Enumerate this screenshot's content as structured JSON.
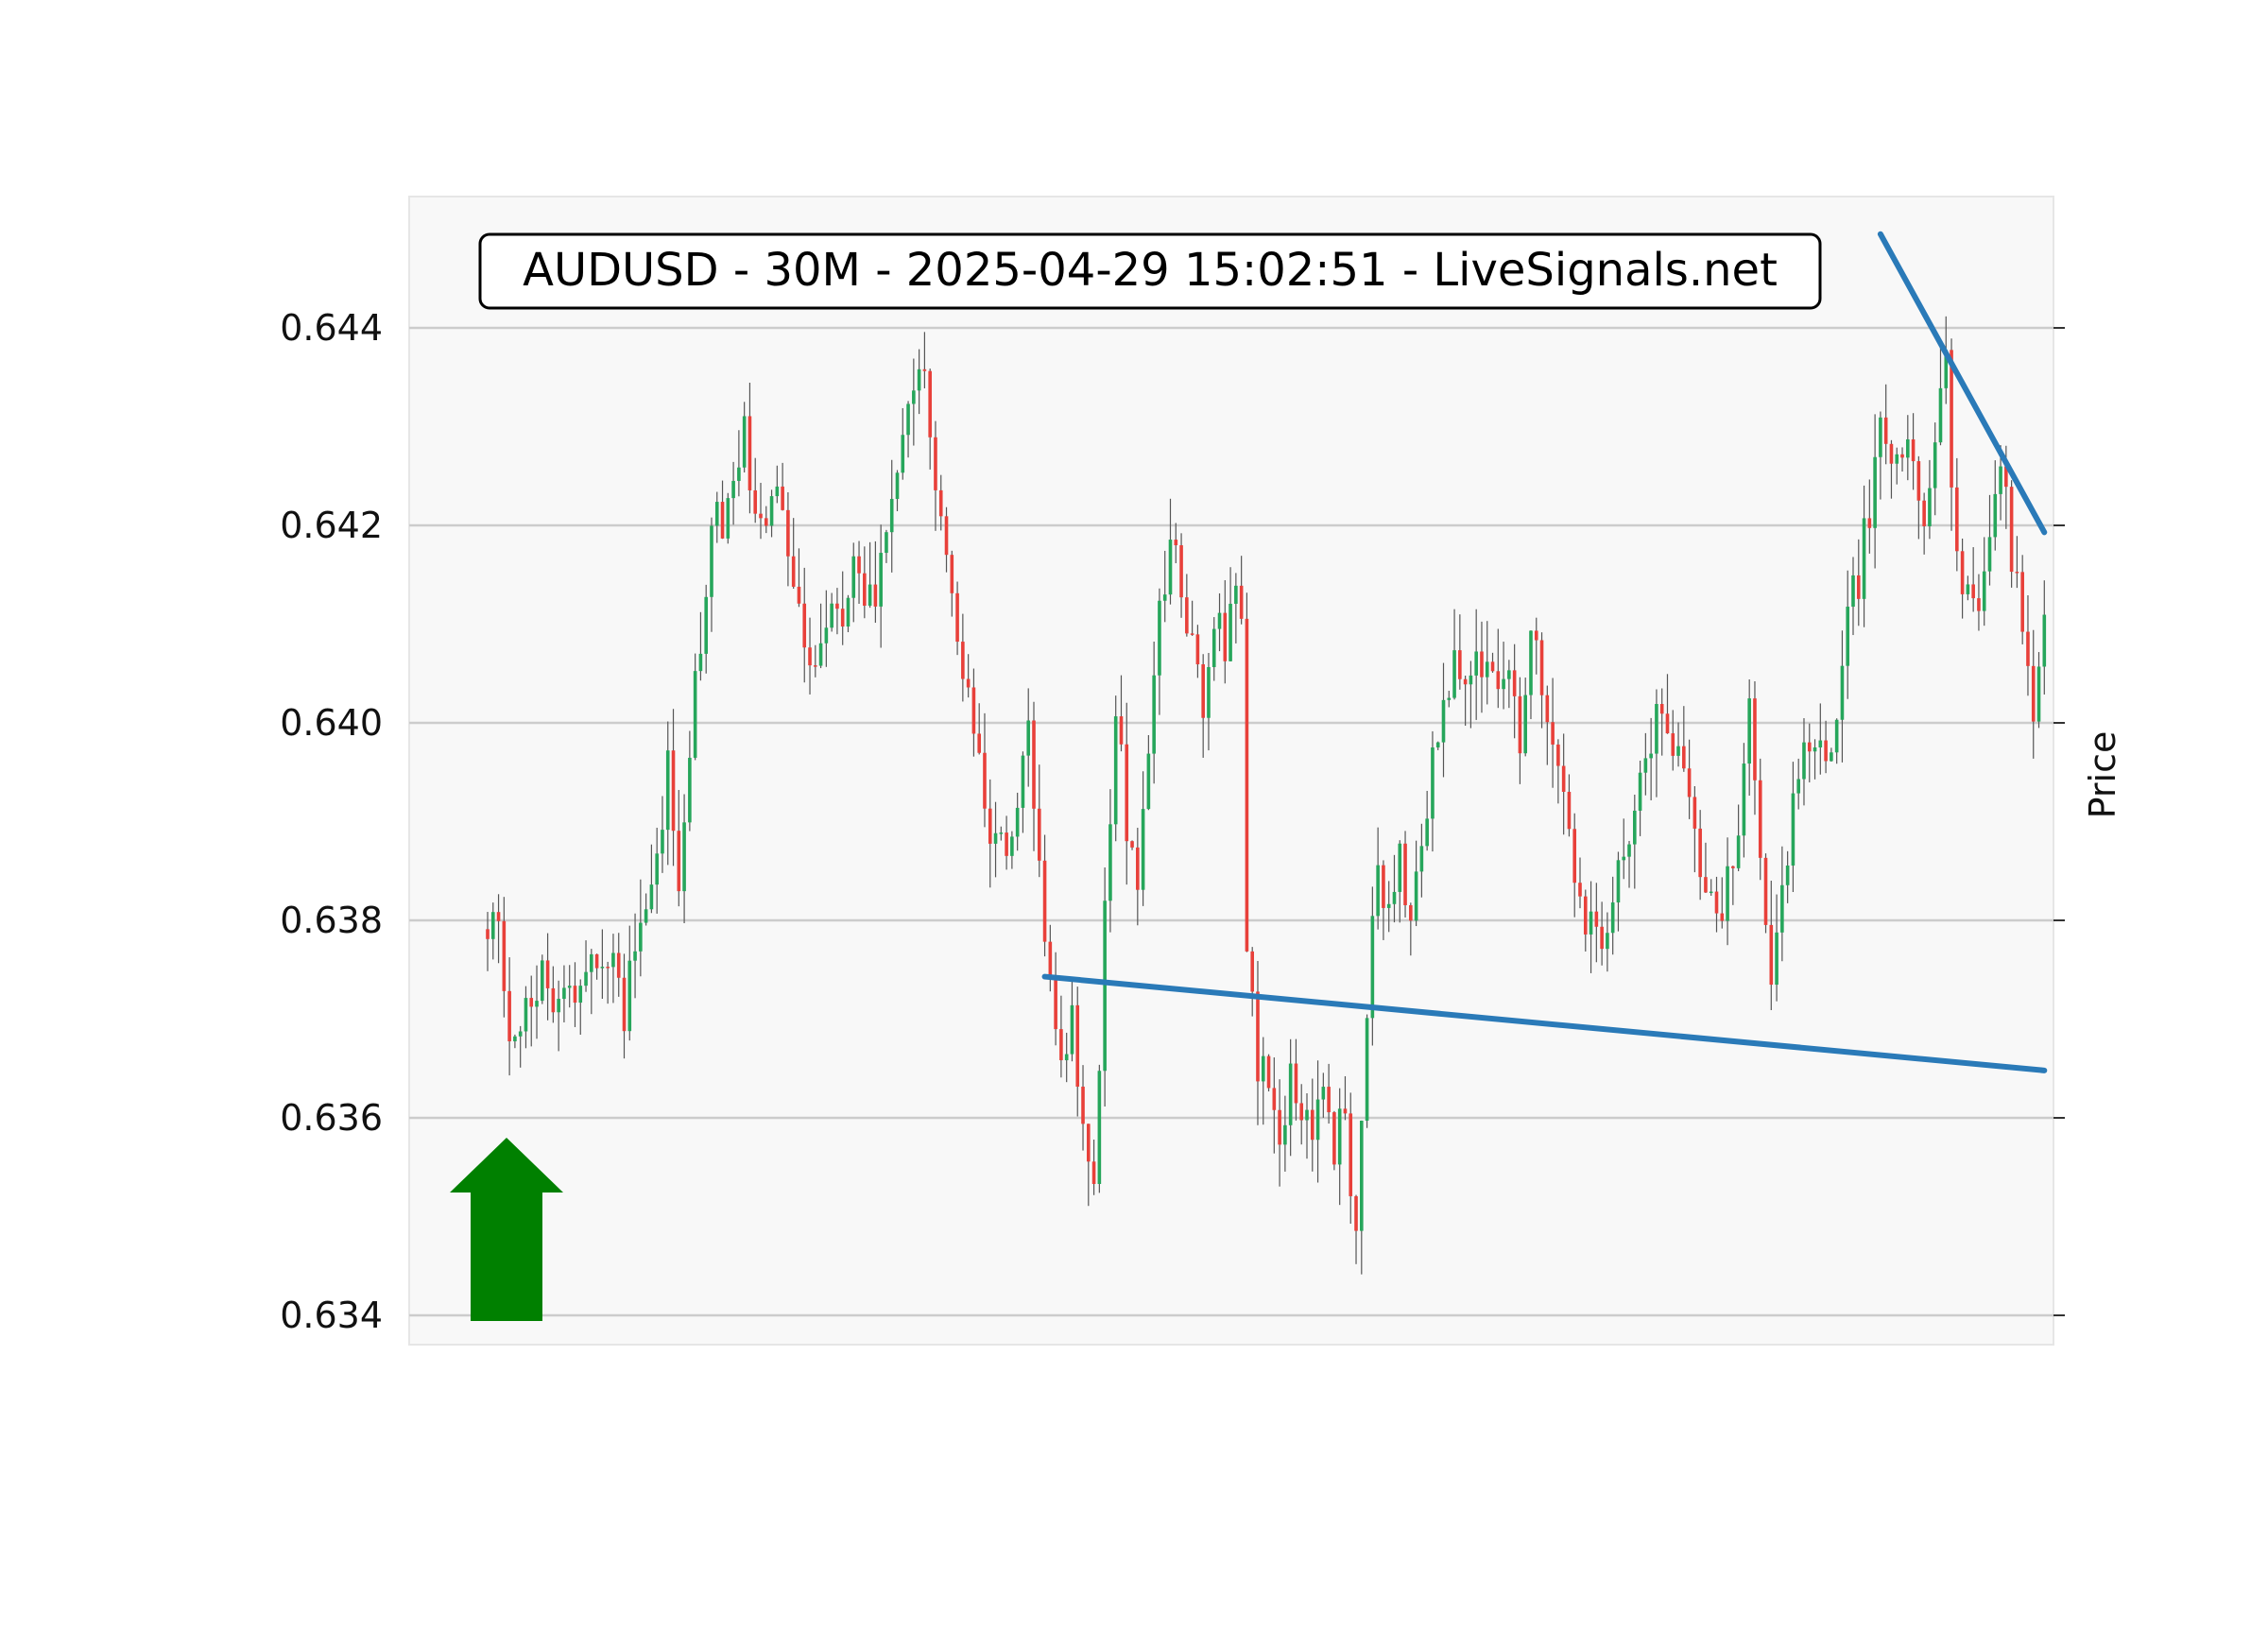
{
  "chart_data": {
    "type": "candlestick",
    "title": "AUDUSD - 30M - 2025-04-29 15:02:51 - LiveSignals.net",
    "ylabel": "Price",
    "xlabel": "",
    "ylim": [
      0.63385,
      0.64515
    ],
    "yticks": [
      "0.634",
      "0.636",
      "0.638",
      "0.640",
      "0.642",
      "0.644"
    ],
    "grid": "horizontal",
    "colors": {
      "up": "#26a65b",
      "down": "#e8403a",
      "wick": "#555555",
      "trendline": "#2a7ab8",
      "arrow": "#008000",
      "plot_bg": "#f8f8f8",
      "grid": "#cccccc"
    },
    "anchors": [
      [
        0,
        0.638
      ],
      [
        2,
        0.6378
      ],
      [
        4,
        0.6369
      ],
      [
        7,
        0.637
      ],
      [
        10,
        0.6374
      ],
      [
        13,
        0.6372
      ],
      [
        17,
        0.6374
      ],
      [
        20,
        0.6376
      ],
      [
        23,
        0.6376
      ],
      [
        25,
        0.6371
      ],
      [
        27,
        0.6378
      ],
      [
        30,
        0.6385
      ],
      [
        33,
        0.6395
      ],
      [
        35,
        0.6385
      ],
      [
        37,
        0.6398
      ],
      [
        39,
        0.6408
      ],
      [
        41,
        0.6422
      ],
      [
        43,
        0.6418
      ],
      [
        45,
        0.6425
      ],
      [
        47,
        0.643
      ],
      [
        49,
        0.6422
      ],
      [
        51,
        0.642
      ],
      [
        53,
        0.6425
      ],
      [
        55,
        0.6418
      ],
      [
        57,
        0.6412
      ],
      [
        59,
        0.6406
      ],
      [
        61,
        0.6408
      ],
      [
        63,
        0.6413
      ],
      [
        65,
        0.641
      ],
      [
        67,
        0.6416
      ],
      [
        69,
        0.6412
      ],
      [
        71,
        0.6414
      ],
      [
        73,
        0.6418
      ],
      [
        75,
        0.6427
      ],
      [
        77,
        0.6434
      ],
      [
        79,
        0.6437
      ],
      [
        81,
        0.643
      ],
      [
        83,
        0.6422
      ],
      [
        85,
        0.6414
      ],
      [
        87,
        0.6405
      ],
      [
        89,
        0.6398
      ],
      [
        91,
        0.6392
      ],
      [
        93,
        0.6388
      ],
      [
        95,
        0.6385
      ],
      [
        97,
        0.6392
      ],
      [
        99,
        0.6402
      ],
      [
        101,
        0.6385
      ],
      [
        103,
        0.6375
      ],
      [
        105,
        0.6365
      ],
      [
        107,
        0.6372
      ],
      [
        109,
        0.6358
      ],
      [
        111,
        0.6352
      ],
      [
        113,
        0.638
      ],
      [
        115,
        0.6402
      ],
      [
        117,
        0.639
      ],
      [
        119,
        0.6385
      ],
      [
        121,
        0.6395
      ],
      [
        123,
        0.641
      ],
      [
        125,
        0.642
      ],
      [
        127,
        0.6412
      ],
      [
        129,
        0.6408
      ],
      [
        131,
        0.6403
      ],
      [
        133,
        0.6412
      ],
      [
        135,
        0.6408
      ],
      [
        137,
        0.6412
      ],
      [
        138,
        0.641
      ],
      [
        139,
        0.6378
      ],
      [
        141,
        0.6366
      ],
      [
        143,
        0.6362
      ],
      [
        145,
        0.6358
      ],
      [
        147,
        0.6363
      ],
      [
        149,
        0.6362
      ],
      [
        151,
        0.636
      ],
      [
        153,
        0.6365
      ],
      [
        155,
        0.6357
      ],
      [
        157,
        0.636
      ],
      [
        159,
        0.6348
      ],
      [
        161,
        0.6372
      ],
      [
        163,
        0.6384
      ],
      [
        165,
        0.6381
      ],
      [
        167,
        0.6386
      ],
      [
        169,
        0.638
      ],
      [
        171,
        0.6388
      ],
      [
        173,
        0.6396
      ],
      [
        175,
        0.64
      ],
      [
        177,
        0.6405
      ],
      [
        179,
        0.6403
      ],
      [
        181,
        0.6408
      ],
      [
        183,
        0.6405
      ],
      [
        185,
        0.6402
      ],
      [
        187,
        0.6407
      ],
      [
        189,
        0.6397
      ],
      [
        191,
        0.641
      ],
      [
        193,
        0.6404
      ],
      [
        195,
        0.6396
      ],
      [
        197,
        0.6394
      ],
      [
        199,
        0.6385
      ],
      [
        201,
        0.6378
      ],
      [
        203,
        0.6381
      ],
      [
        205,
        0.6377
      ],
      [
        207,
        0.6384
      ],
      [
        209,
        0.6388
      ],
      [
        211,
        0.6396
      ],
      [
        213,
        0.6398
      ],
      [
        215,
        0.6402
      ],
      [
        217,
        0.6398
      ],
      [
        219,
        0.6396
      ],
      [
        221,
        0.6388
      ],
      [
        223,
        0.6382
      ],
      [
        225,
        0.638
      ],
      [
        227,
        0.6384
      ],
      [
        229,
        0.639
      ],
      [
        231,
        0.6403
      ],
      [
        233,
        0.6384
      ],
      [
        235,
        0.6371
      ],
      [
        237,
        0.6383
      ],
      [
        239,
        0.6392
      ],
      [
        241,
        0.6396
      ],
      [
        243,
        0.6398
      ],
      [
        245,
        0.6395
      ],
      [
        247,
        0.6402
      ],
      [
        249,
        0.6413
      ],
      [
        251,
        0.6415
      ],
      [
        253,
        0.6422
      ],
      [
        255,
        0.643
      ],
      [
        257,
        0.6428
      ],
      [
        259,
        0.6429
      ],
      [
        261,
        0.6426
      ],
      [
        263,
        0.6421
      ],
      [
        265,
        0.6426
      ],
      [
        267,
        0.6437
      ],
      [
        269,
        0.6415
      ],
      [
        271,
        0.6412
      ],
      [
        273,
        0.6411
      ],
      [
        275,
        0.642
      ],
      [
        277,
        0.6428
      ],
      [
        279,
        0.6416
      ],
      [
        281,
        0.641
      ],
      [
        283,
        0.64
      ],
      [
        285,
        0.641
      ]
    ],
    "annotations": [
      {
        "type": "trendline",
        "from": [
          102,
          0.63743
        ],
        "to": [
          285,
          0.63648
        ]
      },
      {
        "type": "trendline",
        "from": [
          255,
          0.64495
        ],
        "to": [
          285,
          0.64193
        ]
      },
      {
        "type": "arrow",
        "direction": "up",
        "meaning": "buy signal"
      }
    ]
  }
}
